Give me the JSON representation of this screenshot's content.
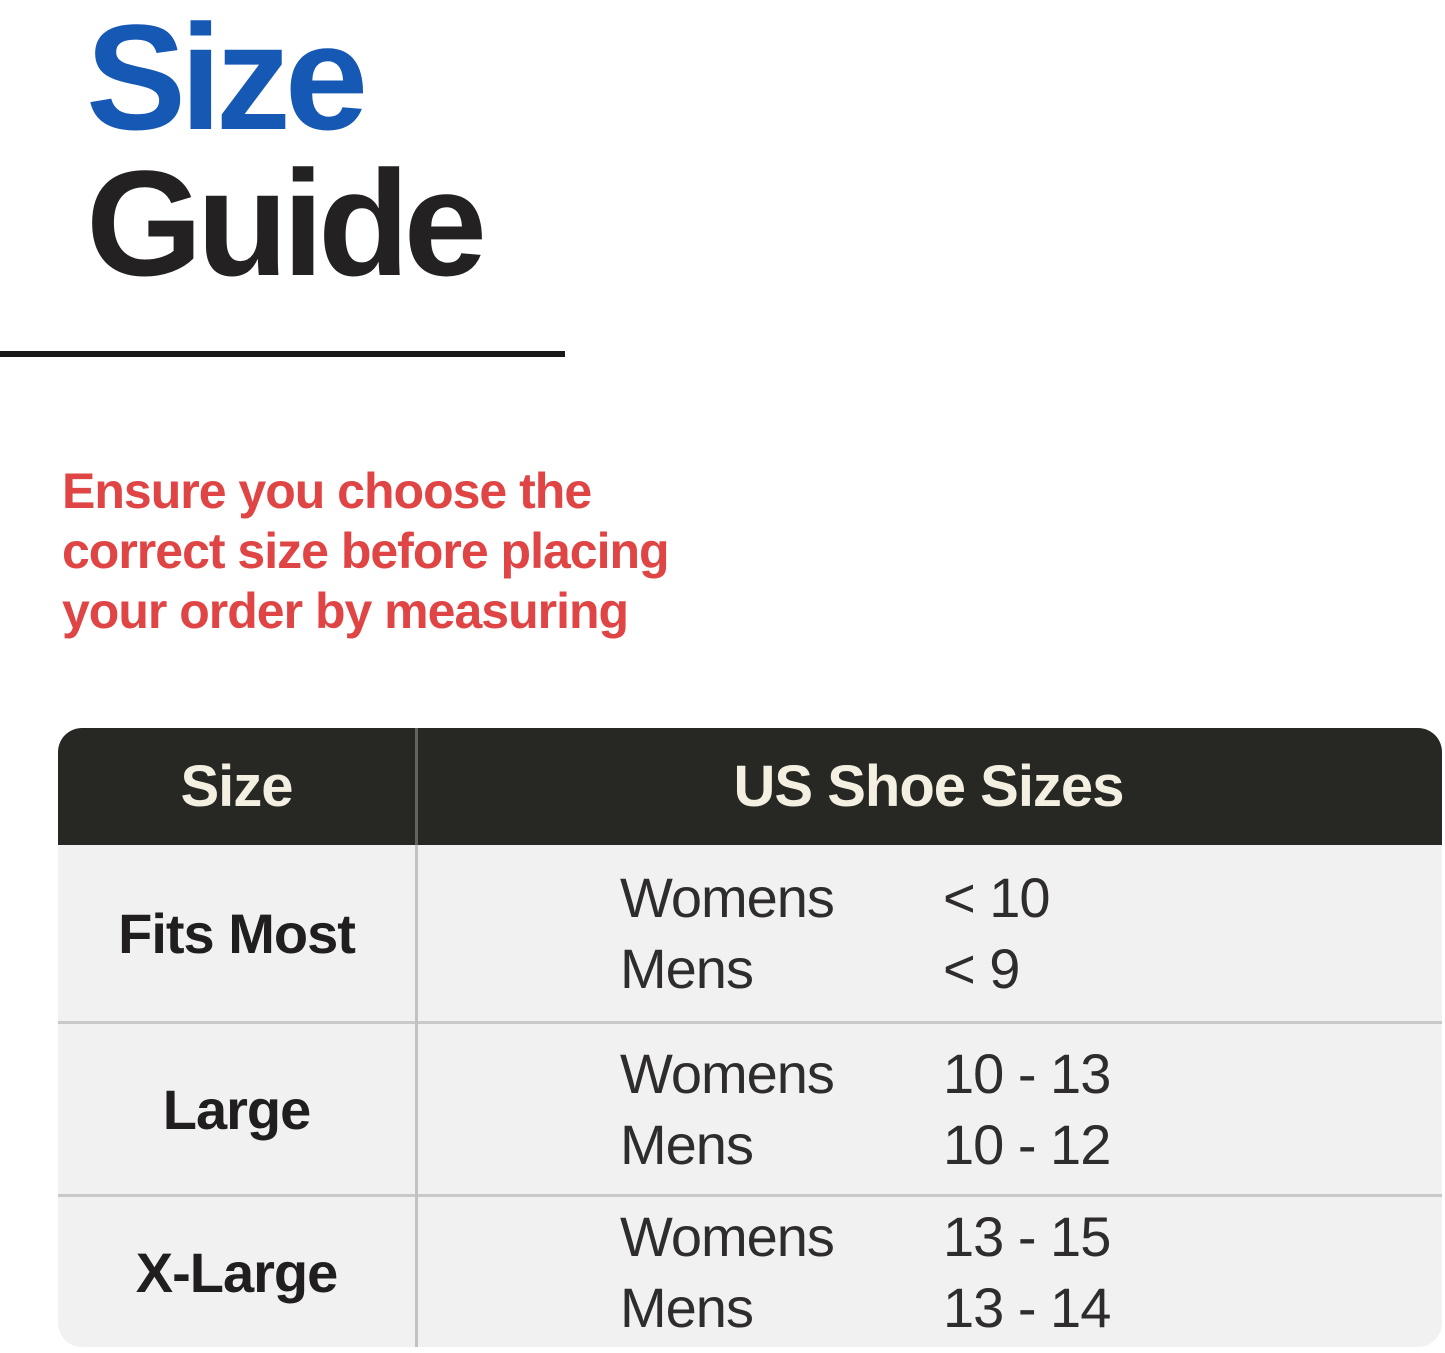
{
  "title": {
    "word1": "Size",
    "word2": "Guide"
  },
  "note": {
    "lines": [
      "Ensure you choose the",
      "correct size before placing",
      "your order by measuring"
    ]
  },
  "table": {
    "col1_header": "Size",
    "col2_header": "US Shoe Sizes",
    "rows": [
      {
        "size": "Fits Most",
        "entries": [
          {
            "label": "Womens",
            "value": "< 10"
          },
          {
            "label": "Mens",
            "value": "< 9"
          }
        ]
      },
      {
        "size": "Large",
        "entries": [
          {
            "label": "Womens",
            "value": "10 - 13"
          },
          {
            "label": "Mens",
            "value": "10 - 12"
          }
        ]
      },
      {
        "size": "X-Large",
        "entries": [
          {
            "label": "Womens",
            "value": "13 - 15"
          },
          {
            "label": "Mens",
            "value": "13 - 14"
          }
        ]
      }
    ]
  },
  "colors": {
    "accent-blue": "#1659b4",
    "heading-dark": "#242122",
    "note-red": "#e04545",
    "header-bg": "#272724",
    "header-text": "#f3f0e2",
    "row-bg": "#f1f1f1",
    "separator": "#c9c9c9",
    "rule-black": "#191919",
    "body-text": "#2e2c2d"
  }
}
